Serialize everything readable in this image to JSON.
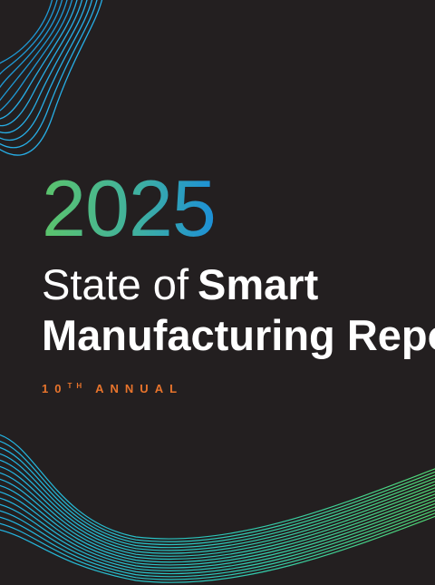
{
  "cover": {
    "year": "2025",
    "title_light": "State of",
    "title_bold": "Smart",
    "title_line2": "Manufacturing Report",
    "edition_number": "10",
    "edition_suffix": "TH",
    "edition_label": "ANNUAL"
  }
}
